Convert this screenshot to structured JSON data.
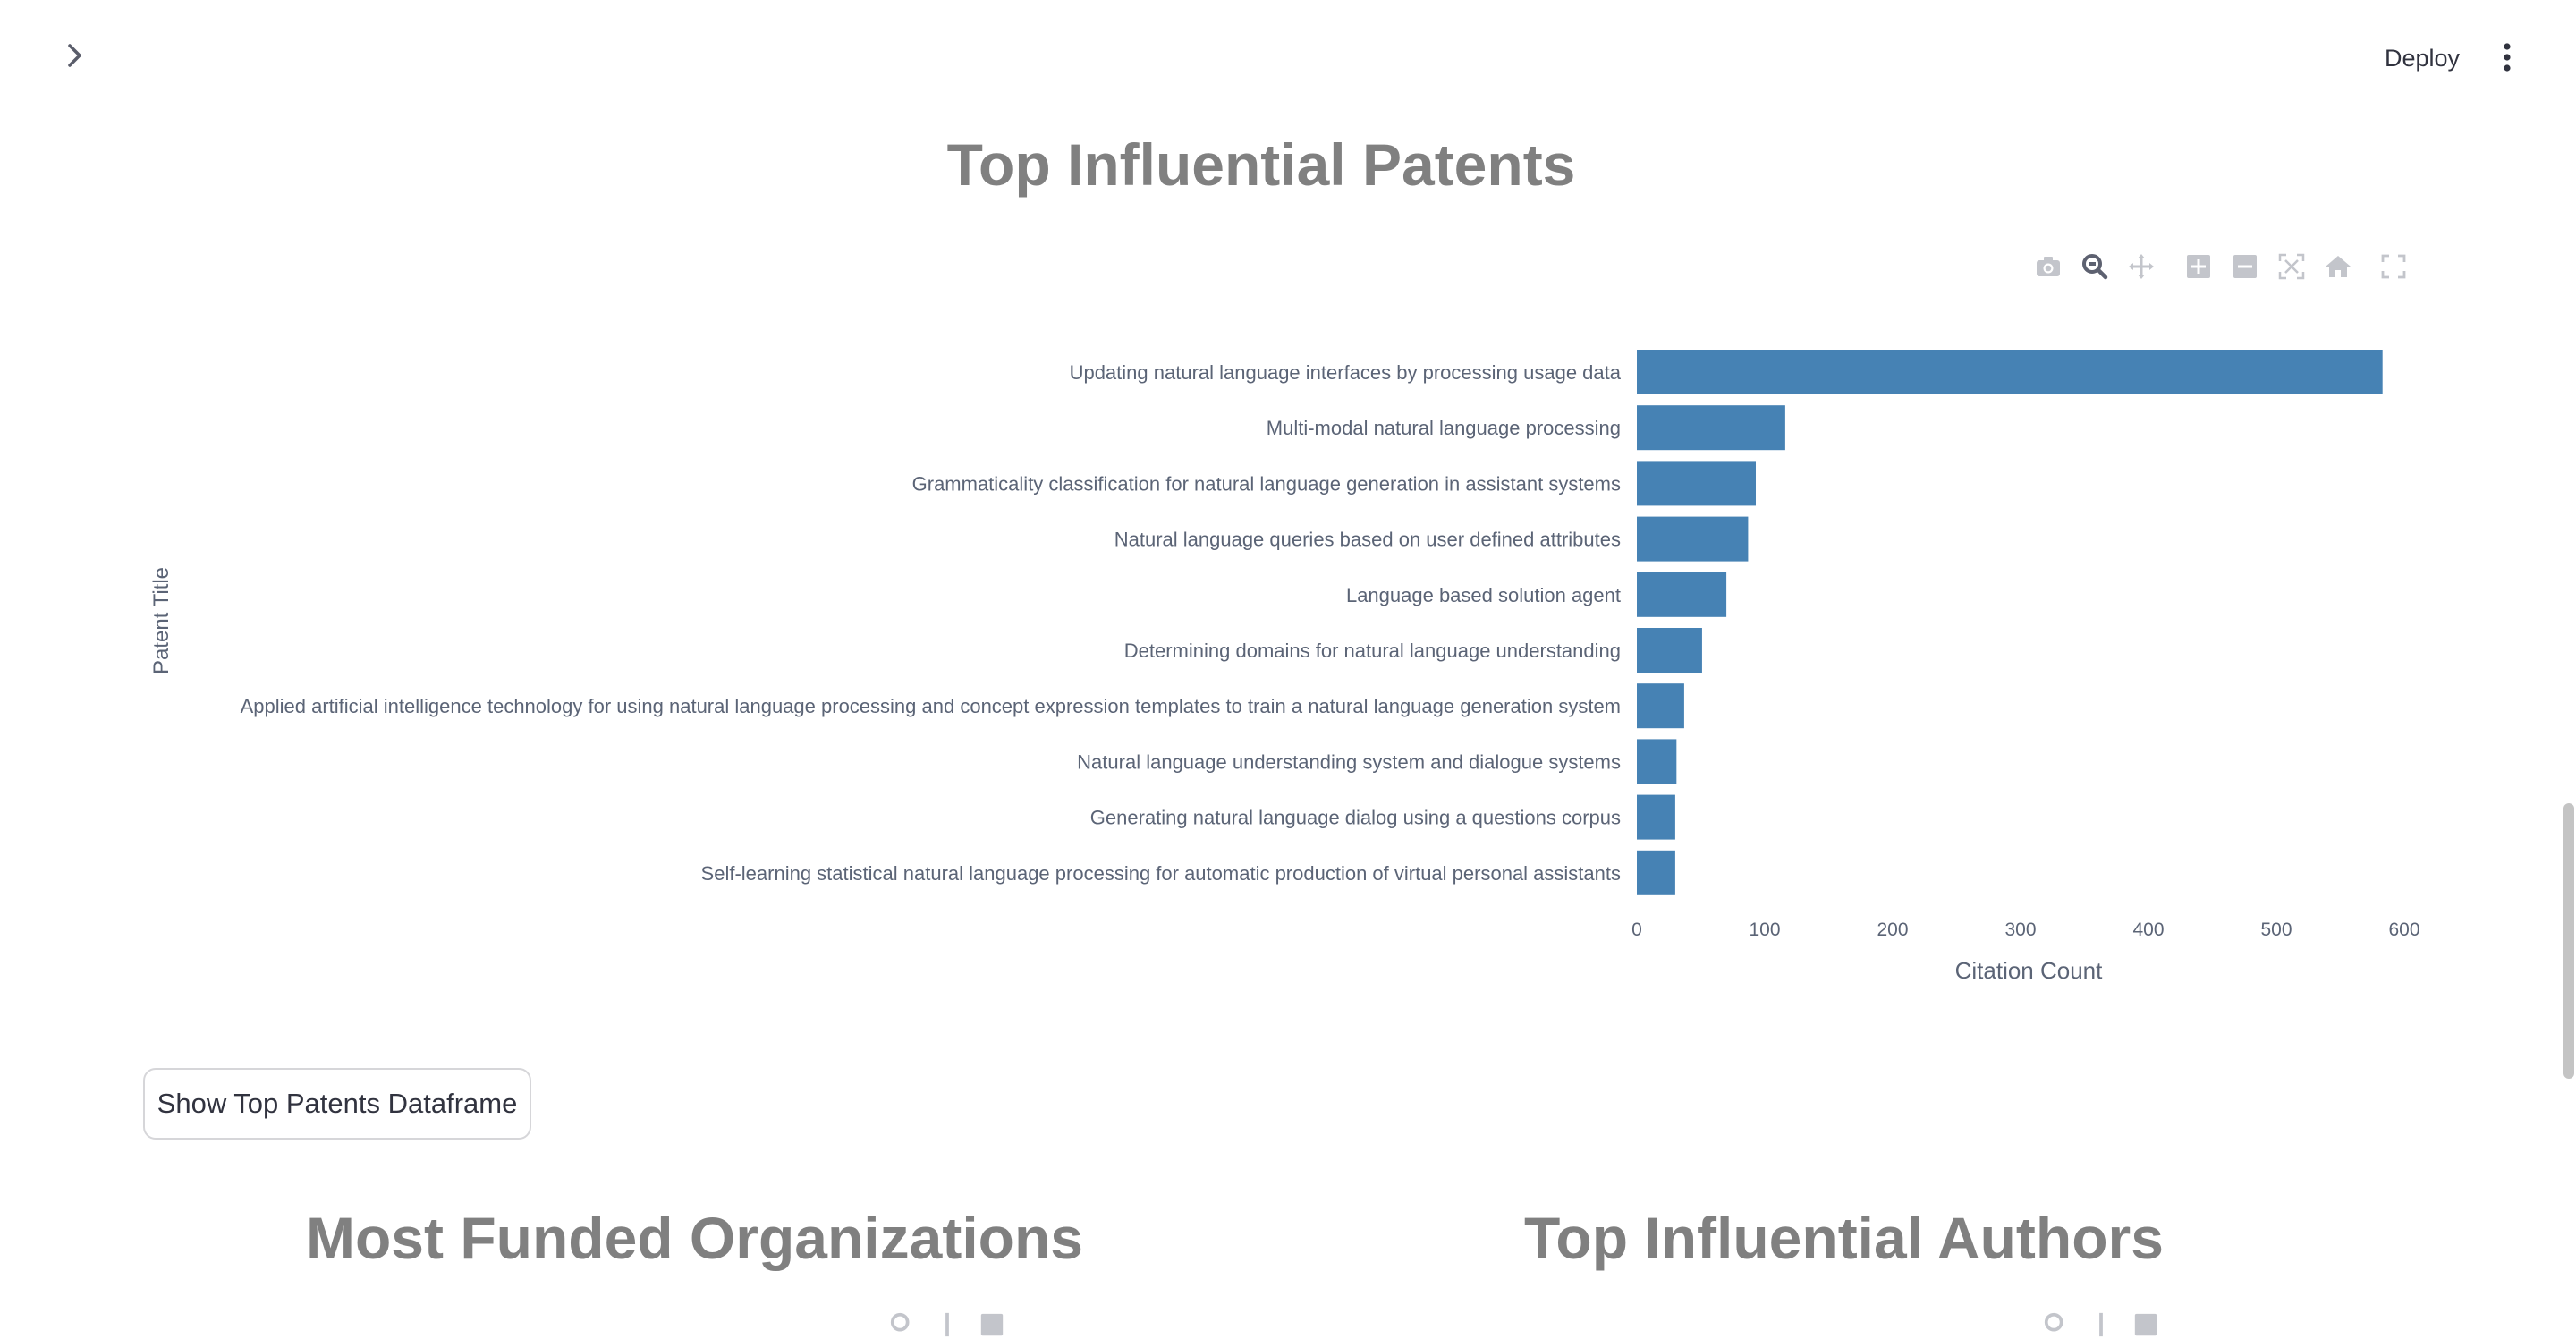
{
  "header": {
    "deploy_label": "Deploy"
  },
  "icons": {
    "sidebar_toggle": "chevron-right-icon",
    "menu": "kebab-menu-icon",
    "modebar": [
      "camera-icon",
      "zoom-icon",
      "pan-icon",
      "zoom-in-icon",
      "zoom-out-icon",
      "autoscale-icon",
      "home-icon",
      "fullscreen-icon"
    ]
  },
  "main": {
    "title": "Top Influential Patents",
    "button_label": "Show Top Patents Dataframe",
    "section_titles": {
      "left": "Most Funded Organizations",
      "right": "Top Influential Authors"
    }
  },
  "colors": {
    "bar": "#4682b4",
    "title": "#808080",
    "axis_text": "#5b6476"
  },
  "chart_data": {
    "type": "bar",
    "orientation": "horizontal",
    "categories": [
      "Updating natural language interfaces by processing usage data",
      "Multi-modal natural language processing",
      "Grammaticality classification for natural language generation in assistant systems",
      "Natural language queries based on user defined attributes",
      "Language based solution agent",
      "Determining domains for natural language understanding",
      "Applied artificial intelligence technology for using natural language processing and concept expression templates to train a natural language generation system",
      "Natural language understanding system and dialogue systems",
      "Generating natural language dialog using a questions corpus",
      "Self-learning statistical natural language processing for automatic production of virtual personal assistants"
    ],
    "values": [
      583,
      116,
      93,
      87,
      70,
      51,
      37,
      31,
      30,
      30
    ],
    "xlabel": "Citation Count",
    "ylabel": "Patent Title",
    "xlim": [
      0,
      600
    ],
    "xticks": [
      0,
      100,
      200,
      300,
      400,
      500,
      600
    ],
    "grid": false
  }
}
